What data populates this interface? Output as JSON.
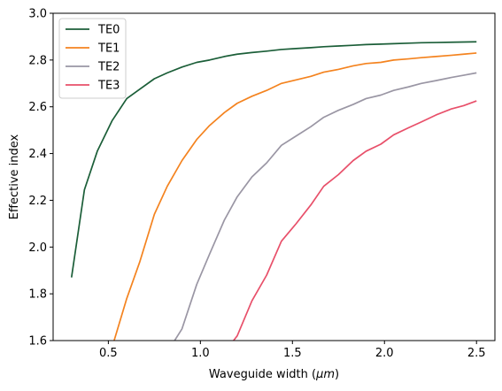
{
  "chart_data": {
    "type": "line",
    "title": "",
    "xlabel": "Waveguide width (",
    "xlabel_math": "μm",
    "xlabel_suffix": ")",
    "ylabel": "Effective index",
    "xlim": [
      0.2,
      2.6
    ],
    "ylim": [
      1.6,
      3.0
    ],
    "xticks": [
      0.5,
      1.0,
      1.5,
      2.0,
      2.5
    ],
    "xtick_labels": [
      "0.5",
      "1.0",
      "1.5",
      "2.0",
      "2.5"
    ],
    "yticks": [
      1.6,
      1.8,
      2.0,
      2.2,
      2.4,
      2.6,
      2.8,
      3.0
    ],
    "ytick_labels": [
      "1.6",
      "1.8",
      "2.0",
      "2.2",
      "2.4",
      "2.6",
      "2.8",
      "3.0"
    ],
    "grid": false,
    "legend_position": "top-left",
    "series": [
      {
        "name": "TE0",
        "color": "#1b5e38",
        "x": [
          0.3,
          0.37,
          0.44,
          0.52,
          0.6,
          0.67,
          0.75,
          0.82,
          0.9,
          0.98,
          1.05,
          1.13,
          1.2,
          1.28,
          1.36,
          1.44,
          1.52,
          1.6,
          1.67,
          1.75,
          1.83,
          1.9,
          1.98,
          2.05,
          2.13,
          2.2,
          2.28,
          2.36,
          2.43,
          2.5
        ],
        "y": [
          1.87,
          2.245,
          2.41,
          2.54,
          2.635,
          2.675,
          2.72,
          2.745,
          2.77,
          2.79,
          2.8,
          2.815,
          2.825,
          2.832,
          2.838,
          2.845,
          2.849,
          2.853,
          2.857,
          2.86,
          2.863,
          2.866,
          2.868,
          2.87,
          2.872,
          2.874,
          2.875,
          2.876,
          2.877,
          2.878
        ]
      },
      {
        "name": "TE1",
        "color": "#f4831f",
        "x": [
          0.52,
          0.6,
          0.67,
          0.75,
          0.82,
          0.9,
          0.98,
          1.05,
          1.13,
          1.2,
          1.28,
          1.36,
          1.44,
          1.52,
          1.6,
          1.67,
          1.75,
          1.83,
          1.9,
          1.98,
          2.05,
          2.13,
          2.2,
          2.28,
          2.36,
          2.43,
          2.5
        ],
        "y": [
          1.57,
          1.78,
          1.935,
          2.14,
          2.26,
          2.37,
          2.46,
          2.52,
          2.575,
          2.615,
          2.645,
          2.67,
          2.7,
          2.715,
          2.73,
          2.748,
          2.76,
          2.775,
          2.785,
          2.79,
          2.8,
          2.805,
          2.81,
          2.815,
          2.82,
          2.825,
          2.83
        ]
      },
      {
        "name": "TE2",
        "color": "#9a96a4",
        "x": [
          0.86,
          0.9,
          0.98,
          1.05,
          1.13,
          1.2,
          1.28,
          1.36,
          1.44,
          1.52,
          1.6,
          1.67,
          1.75,
          1.83,
          1.9,
          1.98,
          2.05,
          2.13,
          2.2,
          2.28,
          2.36,
          2.43,
          2.5
        ],
        "y": [
          1.6,
          1.65,
          1.84,
          1.97,
          2.115,
          2.215,
          2.3,
          2.36,
          2.435,
          2.475,
          2.515,
          2.555,
          2.585,
          2.61,
          2.635,
          2.65,
          2.67,
          2.685,
          2.7,
          2.712,
          2.725,
          2.735,
          2.745
        ]
      },
      {
        "name": "TE3",
        "color": "#e8506a",
        "x": [
          1.18,
          1.2,
          1.28,
          1.36,
          1.44,
          1.52,
          1.6,
          1.67,
          1.75,
          1.83,
          1.9,
          1.98,
          2.05,
          2.13,
          2.2,
          2.28,
          2.36,
          2.43,
          2.5
        ],
        "y": [
          1.6,
          1.62,
          1.77,
          1.88,
          2.025,
          2.1,
          2.18,
          2.26,
          2.31,
          2.37,
          2.41,
          2.44,
          2.48,
          2.51,
          2.535,
          2.565,
          2.59,
          2.605,
          2.625
        ]
      }
    ]
  }
}
